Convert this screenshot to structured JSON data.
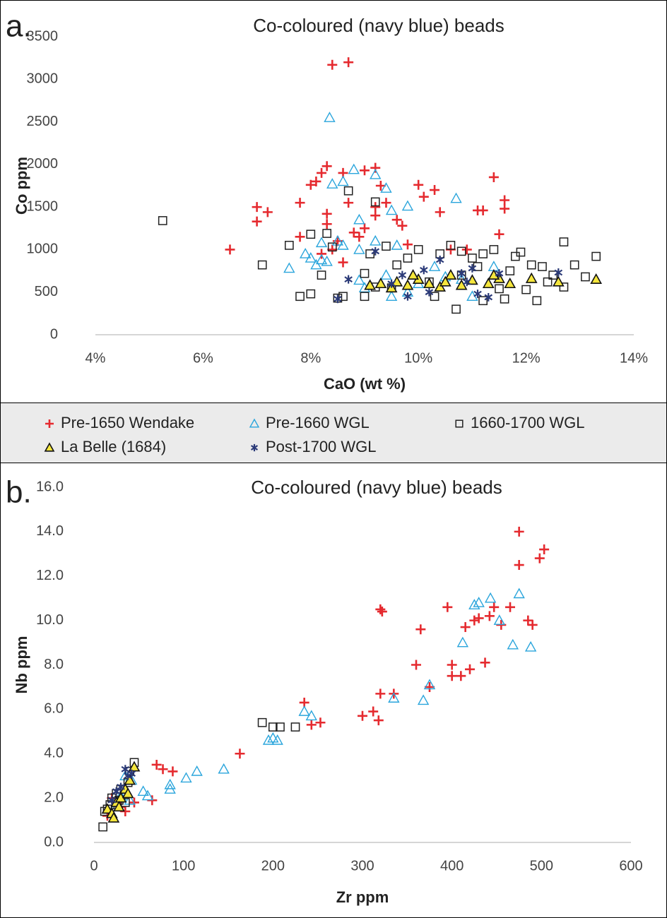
{
  "chart_data": [
    {
      "type": "scatter",
      "panel": "a.",
      "title": "Co-coloured (navy blue) beads",
      "xlabel": "CaO (wt %)",
      "ylabel": "Co ppm",
      "xlim": [
        4,
        14
      ],
      "xticks": [
        {
          "value": 4,
          "label": "4%"
        },
        {
          "value": 6,
          "label": "6%"
        },
        {
          "value": 8,
          "label": "8%"
        },
        {
          "value": 10,
          "label": "10%"
        },
        {
          "value": 12,
          "label": "12%"
        },
        {
          "value": 14,
          "label": "14%"
        }
      ],
      "ylim": [
        0,
        3500
      ],
      "yticks": [
        0,
        500,
        1000,
        1500,
        2000,
        2500,
        3000,
        3500
      ],
      "series": [
        {
          "name": "Pre-1650 Wendake",
          "marker": "plus",
          "color": "#e52a2f",
          "x": [
            8.4,
            8.7,
            6.5,
            7.0,
            7.0,
            7.2,
            7.8,
            8.0,
            8.1,
            8.2,
            8.3,
            8.3,
            8.3,
            8.5,
            8.6,
            8.7,
            8.8,
            8.9,
            9.0,
            9.2,
            9.2,
            9.3,
            9.4,
            9.2,
            9.6,
            9.7,
            9.8,
            10.0,
            10.1,
            10.3,
            10.4,
            10.6,
            10.9,
            11.1,
            11.2,
            11.4,
            11.5,
            11.6,
            11.6,
            7.8,
            8.4,
            8.6,
            9.0,
            8.2
          ],
          "values": [
            3170,
            3200,
            1000,
            1500,
            1330,
            1440,
            1550,
            1760,
            1800,
            1900,
            1980,
            1420,
            1300,
            1100,
            1900,
            1550,
            1200,
            1150,
            1930,
            1960,
            1500,
            1750,
            1550,
            1400,
            1350,
            1280,
            1060,
            1760,
            1620,
            1700,
            1440,
            1000,
            1000,
            1460,
            1460,
            1850,
            1180,
            1480,
            1580,
            1150,
            1000,
            850,
            1250,
            950
          ]
        },
        {
          "name": "Pre-1660 WGL",
          "marker": "triangle-open",
          "color": "#2aa5dc",
          "x": [
            8.35,
            8.4,
            8.6,
            8.8,
            9.2,
            9.4,
            9.5,
            9.8,
            10.7,
            8.9,
            8.9,
            9.2,
            7.6,
            7.9,
            8.0,
            8.1,
            8.2,
            8.3,
            8.5,
            8.6,
            8.9,
            9.4,
            9.6,
            9.8,
            10.0,
            10.3,
            10.5,
            10.8,
            11.4,
            11.0,
            9.0,
            9.5,
            8.2
          ],
          "values": [
            2550,
            1770,
            1800,
            1940,
            1880,
            1720,
            1460,
            1510,
            1600,
            1350,
            1000,
            1100,
            780,
            950,
            900,
            820,
            880,
            860,
            1100,
            1050,
            640,
            700,
            1050,
            500,
            600,
            800,
            680,
            650,
            800,
            450,
            550,
            450,
            1080
          ]
        },
        {
          "name": "1660-1700 WGL",
          "marker": "square-open",
          "color": "#222222",
          "x": [
            5.25,
            7.1,
            7.6,
            7.8,
            8.0,
            8.0,
            8.3,
            8.4,
            8.5,
            8.6,
            8.7,
            9.2,
            9.1,
            9.4,
            9.0,
            9.2,
            9.6,
            9.8,
            10.0,
            10.2,
            10.4,
            10.6,
            10.7,
            10.8,
            11.0,
            11.1,
            11.2,
            11.4,
            11.5,
            11.6,
            11.8,
            11.9,
            12.0,
            12.1,
            12.2,
            12.3,
            12.4,
            12.5,
            12.7,
            12.7,
            12.9,
            13.1,
            13.3,
            9.0,
            10.3,
            11.2,
            8.2,
            9.5,
            10.8,
            11.7
          ],
          "values": [
            1340,
            820,
            1050,
            450,
            480,
            1180,
            1190,
            1030,
            430,
            450,
            1690,
            1560,
            950,
            1040,
            720,
            560,
            820,
            900,
            1000,
            620,
            950,
            1050,
            300,
            980,
            900,
            800,
            950,
            1000,
            540,
            420,
            920,
            970,
            530,
            820,
            400,
            800,
            620,
            700,
            1090,
            560,
            820,
            680,
            920,
            450,
            450,
            400,
            700,
            550,
            700,
            750
          ]
        },
        {
          "name": "La Belle (1684)",
          "marker": "triangle-filled",
          "color": "#f5e63c",
          "x": [
            9.1,
            9.3,
            9.5,
            9.6,
            9.8,
            10.0,
            10.2,
            10.4,
            10.6,
            10.8,
            11.0,
            11.3,
            11.5,
            11.7,
            12.1,
            12.6,
            13.3,
            9.9,
            10.5,
            11.4
          ],
          "values": [
            580,
            600,
            550,
            620,
            580,
            650,
            600,
            560,
            700,
            580,
            640,
            600,
            660,
            600,
            660,
            620,
            650,
            700,
            620,
            700
          ]
        },
        {
          "name": "Post-1700 WGL",
          "marker": "asterisk",
          "color": "#2b3a78",
          "x": [
            8.5,
            8.7,
            9.2,
            9.5,
            9.7,
            10.1,
            10.4,
            10.8,
            11.0,
            11.1,
            11.3,
            11.5,
            10.2,
            10.9,
            12.6,
            9.8
          ],
          "values": [
            420,
            650,
            980,
            600,
            700,
            760,
            880,
            720,
            780,
            480,
            440,
            720,
            500,
            620,
            730,
            450
          ]
        }
      ]
    },
    {
      "type": "scatter",
      "panel": "b.",
      "title": "Co-coloured (navy blue) beads",
      "xlabel": "Zr ppm",
      "ylabel": "Nb ppm",
      "xlim": [
        0,
        600
      ],
      "xticks": [
        0,
        100,
        200,
        300,
        400,
        500,
        600
      ],
      "ylim": [
        0,
        16
      ],
      "yticks": [
        {
          "value": 0,
          "label": "0.0"
        },
        {
          "value": 2,
          "label": "2.0"
        },
        {
          "value": 4,
          "label": "4.0"
        },
        {
          "value": 6,
          "label": "6.0"
        },
        {
          "value": 8,
          "label": "8.0"
        },
        {
          "value": 10,
          "label": "10.0"
        },
        {
          "value": 12,
          "label": "12.0"
        },
        {
          "value": 14,
          "label": "14.0"
        },
        {
          "value": 16,
          "label": "16.0"
        }
      ],
      "series": [
        {
          "marker": "plus",
          "color": "#e52a2f",
          "x": [
            475,
            503,
            498,
            475,
            320,
            322,
            395,
            365,
            360,
            400,
            400,
            410,
            415,
            420,
            425,
            430,
            437,
            442,
            447,
            455,
            465,
            485,
            490,
            235,
            243,
            253,
            300,
            312,
            318,
            320,
            335,
            375,
            163,
            70,
            77,
            88,
            20,
            30,
            15,
            35,
            45,
            65
          ],
          "values": [
            14.0,
            13.2,
            12.8,
            12.5,
            10.5,
            10.4,
            10.6,
            9.6,
            8.0,
            8.0,
            7.5,
            7.5,
            9.7,
            7.8,
            10.0,
            10.1,
            8.1,
            10.2,
            10.6,
            9.8,
            10.6,
            10.0,
            9.8,
            6.3,
            5.3,
            5.4,
            5.7,
            5.9,
            5.5,
            6.7,
            6.7,
            7.0,
            4.0,
            3.5,
            3.3,
            3.2,
            2.0,
            1.6,
            1.2,
            1.4,
            1.8,
            1.9
          ]
        },
        {
          "marker": "triangle-open",
          "color": "#2aa5dc",
          "x": [
            475,
            443,
            425,
            430,
            453,
            412,
            468,
            488,
            375,
            335,
            368,
            235,
            243,
            195,
            200,
            205,
            115,
            103,
            145,
            85,
            85,
            55,
            60,
            40,
            35,
            42,
            30,
            25
          ],
          "values": [
            11.2,
            11.0,
            10.7,
            10.8,
            10.0,
            9.0,
            8.9,
            8.8,
            7.1,
            6.5,
            6.4,
            5.9,
            5.7,
            4.6,
            4.7,
            4.6,
            3.2,
            2.9,
            3.3,
            2.6,
            2.4,
            2.3,
            2.1,
            1.9,
            3.0,
            2.8,
            2.1,
            1.7
          ]
        },
        {
          "marker": "square-open",
          "color": "#222222",
          "x": [
            10,
            15,
            20,
            25,
            30,
            38,
            45,
            35,
            188,
            200,
            208,
            225,
            12,
            18,
            28,
            40
          ],
          "values": [
            0.7,
            1.5,
            2.0,
            2.2,
            2.4,
            2.7,
            3.6,
            1.8,
            5.4,
            5.2,
            5.2,
            5.2,
            1.4,
            1.7,
            1.9,
            3.2
          ]
        },
        {
          "marker": "triangle-filled",
          "color": "#f5e63c",
          "x": [
            15,
            20,
            25,
            30,
            35,
            40,
            45,
            28,
            22,
            38
          ],
          "values": [
            1.5,
            1.3,
            1.8,
            2.0,
            2.4,
            2.8,
            3.4,
            1.6,
            1.1,
            2.2
          ]
        },
        {
          "marker": "asterisk",
          "color": "#2b3a78",
          "x": [
            35,
            38,
            30,
            25,
            42,
            20
          ],
          "values": [
            3.3,
            3.0,
            2.5,
            2.3,
            3.1,
            1.9
          ]
        }
      ]
    }
  ]
}
